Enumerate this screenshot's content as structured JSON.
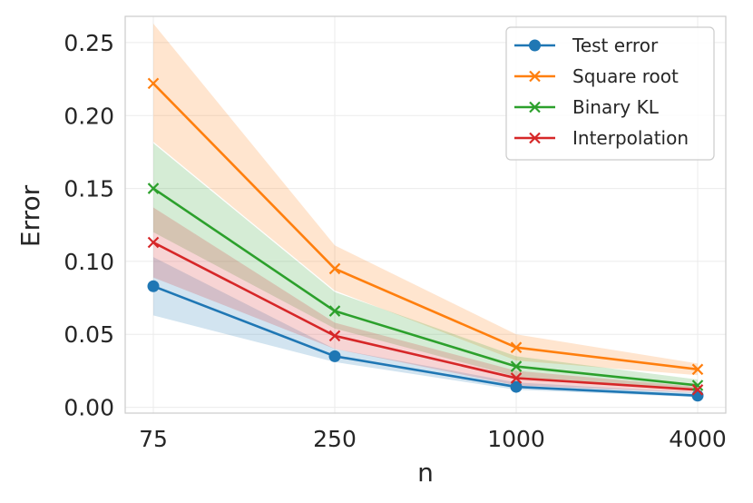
{
  "chart_data": {
    "type": "line",
    "title": "",
    "xlabel": "n",
    "ylabel": "Error",
    "categories": [
      "75",
      "250",
      "1000",
      "4000"
    ],
    "ylim": [
      -0.004,
      0.268
    ],
    "yticks": [
      0.0,
      0.05,
      0.1,
      0.15,
      0.2,
      0.25
    ],
    "ytick_labels": [
      "0.00",
      "0.05",
      "0.10",
      "0.15",
      "0.20",
      "0.25"
    ],
    "grid": true,
    "legend_position": "top-right",
    "series": [
      {
        "name": "Test error",
        "color": "#1f77b4",
        "marker": "circle",
        "values": [
          0.083,
          0.035,
          0.014,
          0.008
        ],
        "lower": [
          0.063,
          0.031,
          0.012,
          0.007
        ],
        "upper": [
          0.103,
          0.04,
          0.017,
          0.01
        ]
      },
      {
        "name": "Square root",
        "color": "#ff7f0e",
        "marker": "x",
        "values": [
          0.222,
          0.095,
          0.041,
          0.026
        ],
        "lower": [
          0.182,
          0.08,
          0.032,
          0.022
        ],
        "upper": [
          0.263,
          0.111,
          0.05,
          0.03
        ]
      },
      {
        "name": "Binary KL",
        "color": "#2ca02c",
        "marker": "x",
        "values": [
          0.15,
          0.066,
          0.028,
          0.015
        ],
        "lower": [
          0.12,
          0.054,
          0.021,
          0.012
        ],
        "upper": [
          0.181,
          0.079,
          0.035,
          0.019
        ]
      },
      {
        "name": "Interpolation",
        "color": "#d62728",
        "marker": "x",
        "values": [
          0.113,
          0.049,
          0.02,
          0.012
        ],
        "lower": [
          0.089,
          0.04,
          0.015,
          0.01
        ],
        "upper": [
          0.137,
          0.058,
          0.025,
          0.014
        ]
      }
    ]
  }
}
